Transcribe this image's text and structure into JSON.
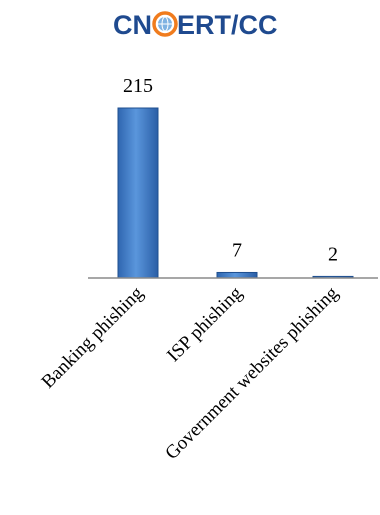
{
  "logo": {
    "text_left": "CN",
    "text_right": "ERT/CC",
    "color": "#1f4a8f",
    "accent_color": "#f07c1e"
  },
  "chart_data": {
    "type": "bar",
    "categories": [
      "Banking phishing",
      "ISP phishing",
      "Government websites phishing"
    ],
    "values": [
      215,
      7,
      2
    ],
    "value_labels": [
      "215",
      "7",
      "2"
    ],
    "ylim": [
      0,
      215
    ],
    "grid": false,
    "bar_color": "#3f7fcb",
    "bar_edge_color": "#1f4f8f",
    "axis_color": "#8a8a8a"
  }
}
